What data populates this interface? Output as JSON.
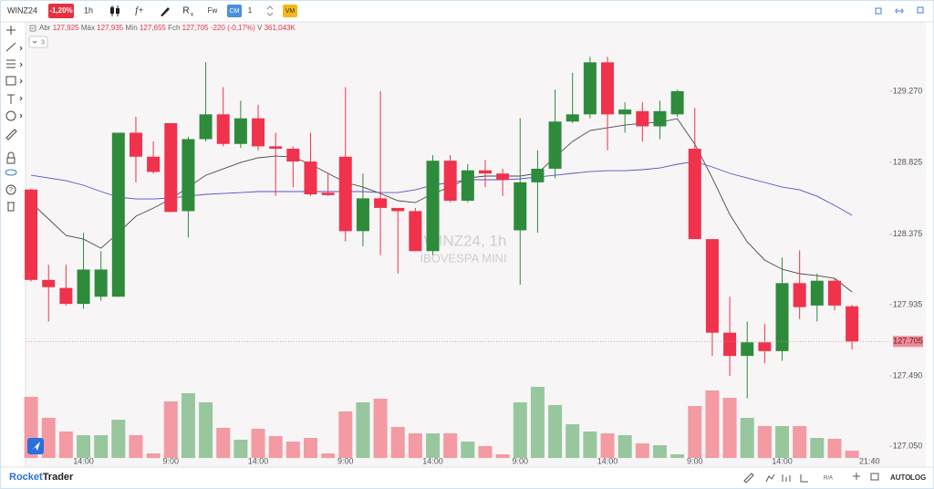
{
  "toolbar": {
    "symbol": "WINZ24",
    "change": "-1,20%",
    "interval": "1h",
    "fx": "f+",
    "rx": [
      "R",
      "x"
    ],
    "fw": "Fw",
    "cm": "CM",
    "cm_count": "1",
    "vm": "VM"
  },
  "indicator_count": "3",
  "footer": {
    "brand": [
      "Rocket",
      "Trader"
    ],
    "ra": "R/A",
    "auto": "AUTO",
    "log": "LOG"
  },
  "chart_data": {
    "type": "candlestick",
    "watermark": [
      "WINZ24, 1h",
      "IBOVESPA MINI"
    ],
    "ohlc_legend": [
      "Abr",
      "127,925",
      "Máx",
      "127,935",
      "Mín",
      "127,655",
      "Fch",
      "127,705",
      "-220 (-0,17%)",
      "V",
      "361,043K"
    ],
    "categories": [
      null,
      null,
      null,
      "14:00",
      null,
      null,
      null,
      null,
      "9:00",
      null,
      null,
      null,
      null,
      "14:00",
      null,
      null,
      null,
      null,
      "9:00",
      null,
      null,
      null,
      null,
      "14:00",
      null,
      null,
      null,
      null,
      "9:00",
      null,
      null,
      null,
      null,
      "14:00",
      null,
      null,
      null,
      null,
      "9:00",
      null,
      null,
      null,
      null,
      "14:00",
      null,
      null,
      null,
      null
    ],
    "clock": "21:40",
    "open": [
      128655,
      128090,
      128040,
      127940,
      127985,
      127985,
      129010,
      128860,
      129070,
      128520,
      128970,
      129125,
      128940,
      129100,
      128925,
      128910,
      128830,
      128635,
      128860,
      128395,
      128600,
      128540,
      128520,
      128270,
      128835,
      128585,
      128775,
      128755,
      128400,
      128700,
      128785,
      129080,
      129125,
      129450,
      129125,
      129145,
      129050,
      129125,
      128910,
      128345,
      127760,
      127615,
      127700,
      127645,
      128070,
      127930,
      128085,
      127925
    ],
    "high": [
      128660,
      128185,
      128185,
      128385,
      128270,
      129010,
      129110,
      128955,
      129070,
      128985,
      129450,
      129295,
      129210,
      129185,
      129010,
      128925,
      129010,
      128755,
      129295,
      128755,
      129270,
      128540,
      128540,
      128870,
      128870,
      128815,
      128840,
      128785,
      129100,
      128900,
      129280,
      129385,
      129485,
      129485,
      129200,
      129200,
      129210,
      129280,
      129165,
      128345,
      127985,
      127830,
      127815,
      128230,
      128275,
      128130,
      128100,
      127935
    ],
    "low": [
      128080,
      127830,
      127930,
      127910,
      127960,
      127985,
      128700,
      128755,
      128515,
      128355,
      128955,
      128925,
      128915,
      128900,
      128615,
      128670,
      128615,
      128615,
      128330,
      128300,
      128245,
      128130,
      128270,
      128245,
      128575,
      128575,
      128670,
      128615,
      128060,
      128385,
      128725,
      129070,
      129100,
      128900,
      129010,
      128955,
      128970,
      129110,
      128345,
      127615,
      127490,
      127350,
      127570,
      127585,
      127845,
      127830,
      127900,
      127655
    ],
    "close": [
      128090,
      128045,
      127940,
      128155,
      128155,
      129010,
      128860,
      128765,
      128515,
      128970,
      129125,
      128940,
      129100,
      128925,
      128910,
      128830,
      128625,
      128620,
      128395,
      128600,
      128540,
      128520,
      128270,
      128835,
      128585,
      128775,
      128755,
      128715,
      128700,
      128785,
      129080,
      129125,
      129450,
      129125,
      129155,
      129050,
      129145,
      129270,
      128345,
      127760,
      127615,
      127700,
      127645,
      128070,
      127920,
      128085,
      127930,
      127705
    ],
    "volume": [
      3015000,
      1980000,
      1305000,
      1125000,
      1125000,
      1890000,
      1125000,
      225000,
      2790000,
      3195000,
      2745000,
      1485000,
      900000,
      1440000,
      1080000,
      810000,
      990000,
      225000,
      2295000,
      2745000,
      2925000,
      1530000,
      1215000,
      1215000,
      1215000,
      810000,
      585000,
      180000,
      2745000,
      3510000,
      2610000,
      1665000,
      1305000,
      1215000,
      1125000,
      720000,
      630000,
      180000,
      2565000,
      3330000,
      2970000,
      1980000,
      1575000,
      1575000,
      1575000,
      990000,
      945000,
      361043
    ],
    "up_color": "#2e8b3c",
    "down_color": "#f0324c",
    "volume_up_color": "#98c79e",
    "volume_down_color": "#f49aa2",
    "moving_averages": [
      {
        "color": "#4a4a4a",
        "values": [
          128573,
          128471,
          128368,
          128345,
          128288,
          128385,
          128488,
          128539,
          128596,
          128670,
          128744,
          128784,
          128824,
          128853,
          128864,
          128858,
          128813,
          128756,
          128699,
          128670,
          128630,
          128585,
          128573,
          128630,
          128670,
          128727,
          128739,
          128739,
          128739,
          128756,
          128858,
          128955,
          129024,
          129041,
          129058,
          129069,
          129075,
          129098,
          128938,
          128727,
          128499,
          128328,
          128214,
          128157,
          128129,
          128117,
          128100,
          128015
        ]
      },
      {
        "color": "#5a50c8",
        "values": [
          128744,
          128727,
          128710,
          128682,
          128642,
          128608,
          128596,
          128596,
          128602,
          128613,
          128625,
          128630,
          128636,
          128642,
          128642,
          128642,
          128642,
          128642,
          128642,
          128642,
          128636,
          128636,
          128653,
          128682,
          128699,
          128716,
          128716,
          128716,
          128722,
          128733,
          128744,
          128756,
          128767,
          128773,
          128773,
          128779,
          128790,
          128813,
          128830,
          128796,
          128756,
          128727,
          128699,
          128670,
          128653,
          128613,
          128556,
          128494
        ]
      }
    ],
    "ylim": [
      126920,
      129680
    ],
    "yticks": [
      {
        "value": 129270,
        "label": "129.270"
      },
      {
        "value": 128825,
        "label": "128.825"
      },
      {
        "value": 128375,
        "label": "128.375"
      },
      {
        "value": 127935,
        "label": "127.935"
      },
      {
        "value": 127490,
        "label": "127.490"
      },
      {
        "value": 127050,
        "label": "127.050"
      }
    ],
    "last_price": {
      "value": 127705,
      "label": "127.705"
    },
    "last_price_color": "#f08a97"
  }
}
